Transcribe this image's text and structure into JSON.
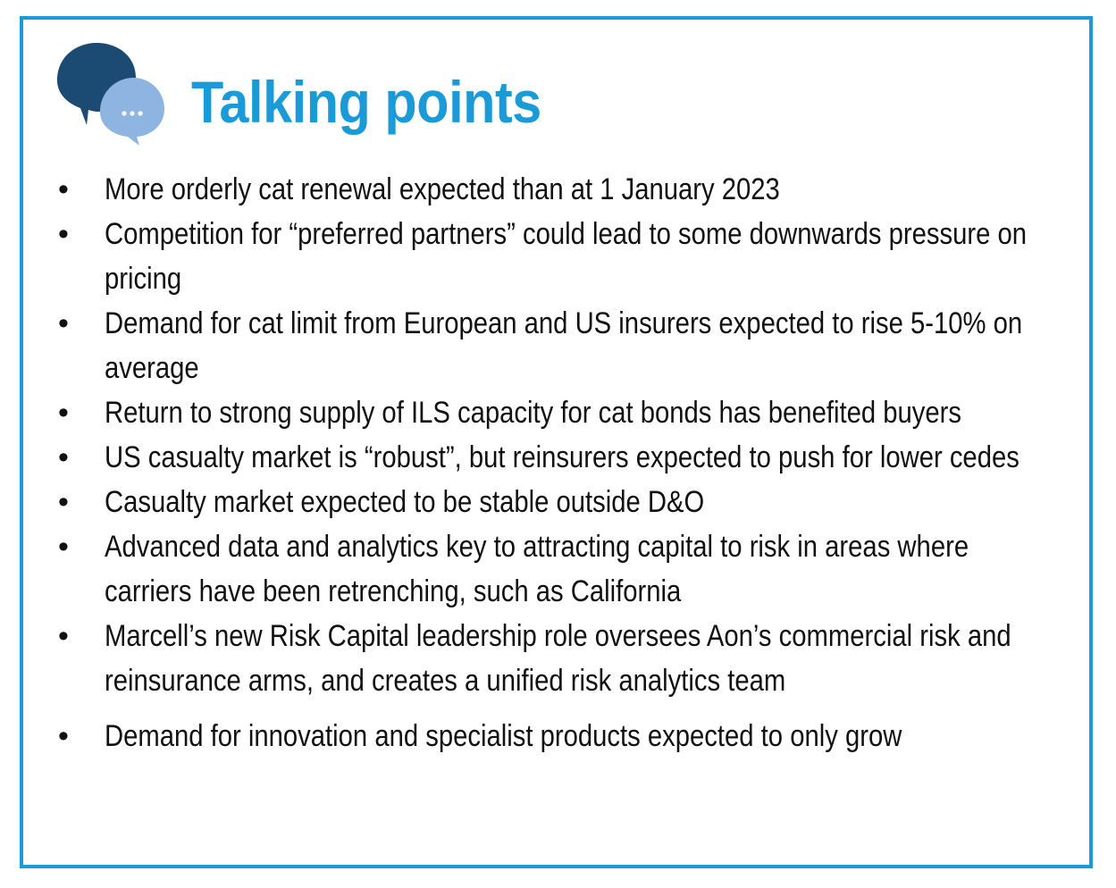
{
  "header": {
    "title": "Talking points",
    "icon": "chat-bubbles-icon"
  },
  "colors": {
    "accent": "#1a9ad6",
    "bubble_dark": "#1b4a73",
    "bubble_light": "#8eb4e1"
  },
  "bullets": [
    "More orderly cat renewal expected than at 1 January 2023",
    "Competition for “preferred partners” could lead to some downwards pressure on pricing",
    "Demand for cat limit from European and US insurers expected to rise 5-10% on average",
    "Return to strong supply of ILS capacity for cat bonds has benefited buyers",
    "US casualty market is “robust”, but reinsurers expected to push for lower cedes",
    "Casualty market expected to be stable outside D&O",
    "Advanced data and analytics key to attracting capital to risk in areas where carriers have been retrenching, such as California",
    "Marcell’s new Risk Capital leadership role oversees Aon’s commercial risk and reinsurance arms, and creates a unified risk analytics team",
    "Demand for innovation and specialist products expected to only grow"
  ],
  "bullet_char": "•"
}
